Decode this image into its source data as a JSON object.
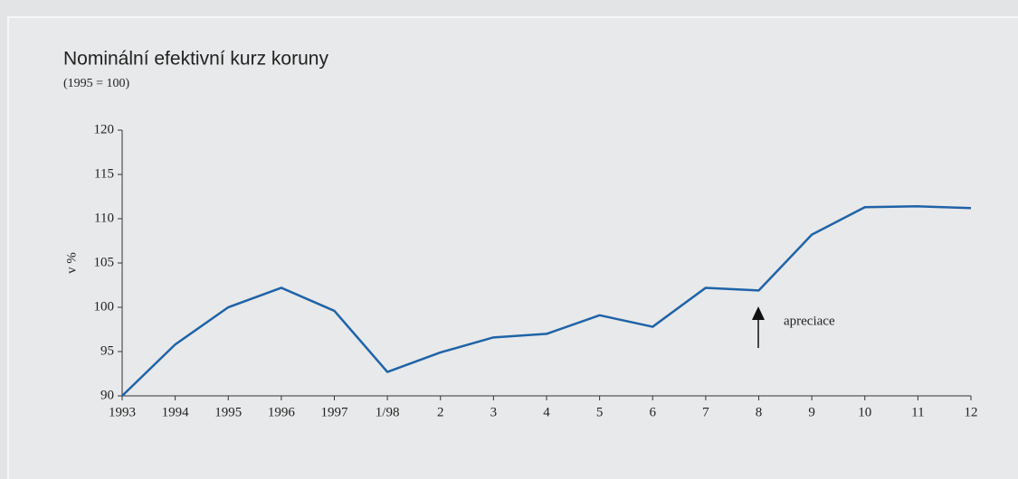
{
  "chart_data": {
    "type": "line",
    "title": "Nominální efektivní kurz koruny",
    "subtitle": "(1995 = 100)",
    "y_label": "v %",
    "annotation": "apreciace",
    "categories": [
      "1993",
      "1994",
      "1995",
      "1996",
      "1997",
      "1/98",
      "2",
      "3",
      "4",
      "5",
      "6",
      "7",
      "8",
      "9",
      "10",
      "11",
      "12"
    ],
    "values": [
      90,
      95.8,
      100,
      102.2,
      99.6,
      92.7,
      94.9,
      96.6,
      97.0,
      99.1,
      97.8,
      102.2,
      101.9,
      108.2,
      111.3,
      111.4,
      111.2
    ],
    "color": "#1f63a8",
    "ylim": [
      90,
      120
    ],
    "yticks": [
      90,
      95,
      100,
      105,
      110,
      115,
      120
    ],
    "grid": false
  }
}
